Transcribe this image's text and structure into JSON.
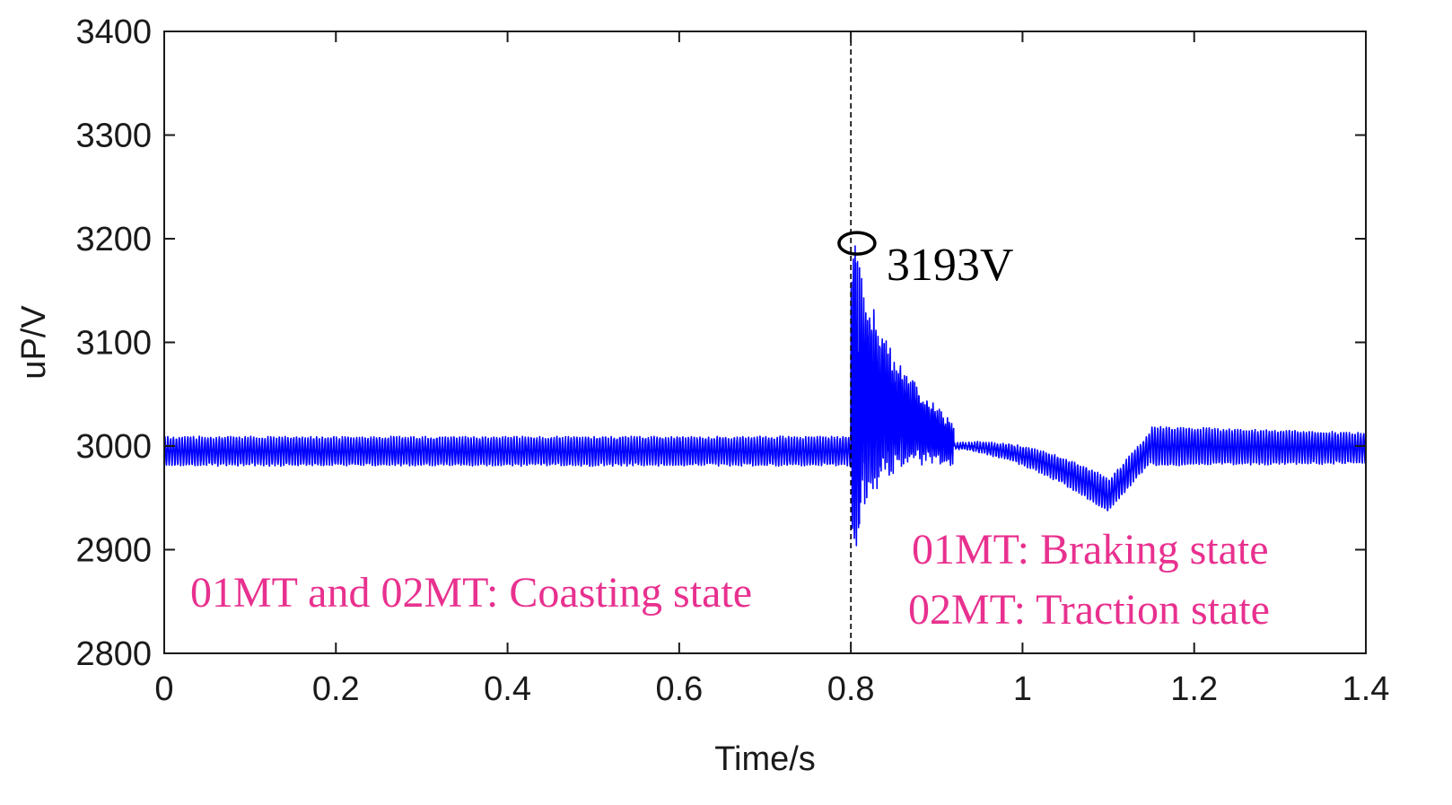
{
  "chart_data": {
    "type": "line",
    "title": "",
    "xlabel": "Time/s",
    "ylabel": "uP/V",
    "xlim": [
      0,
      1.4
    ],
    "ylim": [
      2800,
      3400
    ],
    "x_ticks": [
      0,
      0.2,
      0.4,
      0.6,
      0.8,
      1,
      1.2,
      1.4
    ],
    "x_tick_labels": [
      "0",
      "0.2",
      "0.4",
      "0.6",
      "0.8",
      "1",
      "1.2",
      "1.4"
    ],
    "y_ticks": [
      2800,
      2900,
      3000,
      3100,
      3200,
      3300,
      3400
    ],
    "y_tick_labels": [
      "2800",
      "2900",
      "3000",
      "3100",
      "3200",
      "3300",
      "3400"
    ],
    "grid": false,
    "series": [
      {
        "name": "uP",
        "color": "#0000ff",
        "description": "DC voltage oscillating about 3000 V (amplitude ~15 V) until 0.8 s; surge to peak 3193 V near 0.81 s with decaying oscillation to ~0.9 s; dip to ~2945 V near 1.1 s; recovery to ~3000 V with ripple up to 1.4 s",
        "keypoints": [
          {
            "x": 0.0,
            "y": 2995
          },
          {
            "x": 0.8,
            "y": 2995
          },
          {
            "x": 0.805,
            "y": 3193
          },
          {
            "x": 0.81,
            "y": 2925
          },
          {
            "x": 0.9,
            "y": 3010
          },
          {
            "x": 0.95,
            "y": 2998
          },
          {
            "x": 1.05,
            "y": 2982
          },
          {
            "x": 1.1,
            "y": 2945
          },
          {
            "x": 1.15,
            "y": 3010
          },
          {
            "x": 1.4,
            "y": 2998
          }
        ]
      }
    ],
    "vline": {
      "x": 0.8,
      "style": "dashed",
      "color": "#000000"
    },
    "peak_marker": {
      "x": 0.805,
      "y": 3193,
      "label": "3193V"
    },
    "annotations": [
      {
        "text": "01MT and 02MT: Coasting state",
        "color": "#e8318f"
      },
      {
        "text": "01MT: Braking state",
        "color": "#e8318f"
      },
      {
        "text": "02MT: Traction state",
        "color": "#e8318f"
      }
    ]
  }
}
